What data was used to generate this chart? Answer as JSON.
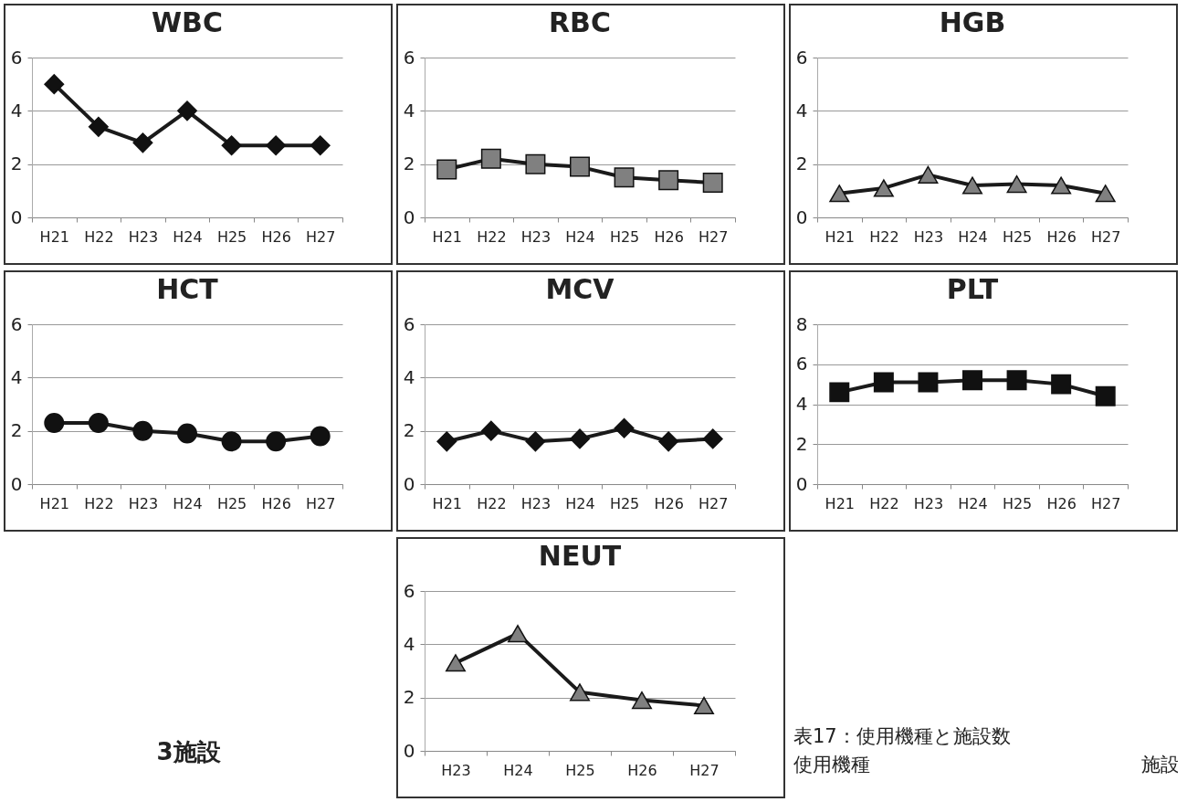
{
  "chart_data": [
    {
      "type": "line",
      "title": "WBC",
      "categories": [
        "H21",
        "H22",
        "H23",
        "H24",
        "H25",
        "H26",
        "H27"
      ],
      "marker": "diamond",
      "grid": "y",
      "ylim": [
        0,
        6
      ],
      "yticks": [
        0,
        2,
        4,
        6
      ],
      "series": [
        {
          "color": "#111111",
          "values": [
            5.0,
            3.4,
            2.8,
            4.0,
            2.7,
            2.7,
            2.7
          ]
        }
      ]
    },
    {
      "type": "line",
      "title": "RBC",
      "categories": [
        "H21",
        "H22",
        "H23",
        "H24",
        "H25",
        "H26",
        "H27"
      ],
      "marker": "square",
      "grid": "y",
      "ylim": [
        0,
        6
      ],
      "yticks": [
        0,
        2,
        4,
        6
      ],
      "series": [
        {
          "color": "#808080",
          "values": [
            1.8,
            2.2,
            2.0,
            1.9,
            1.5,
            1.4,
            1.3
          ]
        }
      ]
    },
    {
      "type": "line",
      "title": "HGB",
      "categories": [
        "H21",
        "H22",
        "H23",
        "H24",
        "H25",
        "H26",
        "H27"
      ],
      "marker": "triangle",
      "grid": "y",
      "ylim": [
        0,
        6
      ],
      "yticks": [
        0,
        2,
        4,
        6
      ],
      "series": [
        {
          "color": "#808080",
          "values": [
            0.9,
            1.1,
            1.6,
            1.2,
            1.25,
            1.2,
            0.9
          ]
        }
      ]
    },
    {
      "type": "line",
      "title": "HCT",
      "categories": [
        "H21",
        "H22",
        "H23",
        "H24",
        "H25",
        "H26",
        "H27"
      ],
      "marker": "circle",
      "grid": "y",
      "ylim": [
        0,
        6
      ],
      "yticks": [
        0,
        2,
        4,
        6
      ],
      "series": [
        {
          "color": "#111111",
          "values": [
            2.3,
            2.3,
            2.0,
            1.9,
            1.6,
            1.6,
            1.8
          ]
        }
      ]
    },
    {
      "type": "line",
      "title": "MCV",
      "categories": [
        "H21",
        "H22",
        "H23",
        "H24",
        "H25",
        "H26",
        "H27"
      ],
      "marker": "diamond",
      "grid": "y",
      "ylim": [
        0,
        6
      ],
      "yticks": [
        0,
        2,
        4,
        6
      ],
      "series": [
        {
          "color": "#111111",
          "values": [
            1.6,
            2.0,
            1.6,
            1.7,
            2.1,
            1.6,
            1.7
          ]
        }
      ]
    },
    {
      "type": "line",
      "title": "PLT",
      "categories": [
        "H21",
        "H22",
        "H23",
        "H24",
        "H25",
        "H26",
        "H27"
      ],
      "marker": "square",
      "grid": "y",
      "ylim": [
        0,
        8
      ],
      "yticks": [
        0,
        2,
        4,
        6,
        8
      ],
      "series": [
        {
          "color": "#111111",
          "values": [
            4.6,
            5.1,
            5.1,
            5.2,
            5.2,
            5.0,
            4.4
          ]
        }
      ]
    },
    {
      "type": "other",
      "title": "3施設"
    },
    {
      "type": "line",
      "title": "NEUT",
      "categories": [
        "H23",
        "H24",
        "H25",
        "H26",
        "H27"
      ],
      "marker": "triangle",
      "grid": "y",
      "ylim": [
        0,
        6
      ],
      "yticks": [
        0,
        2,
        4,
        6
      ],
      "series": [
        {
          "color": "#808080",
          "values": [
            3.3,
            4.4,
            2.2,
            1.9,
            1.7
          ]
        }
      ]
    },
    {
      "type": "other",
      "title": "表17：使用機種と施設数",
      "annotations": [
        "使用機種",
        "施設"
      ]
    }
  ]
}
